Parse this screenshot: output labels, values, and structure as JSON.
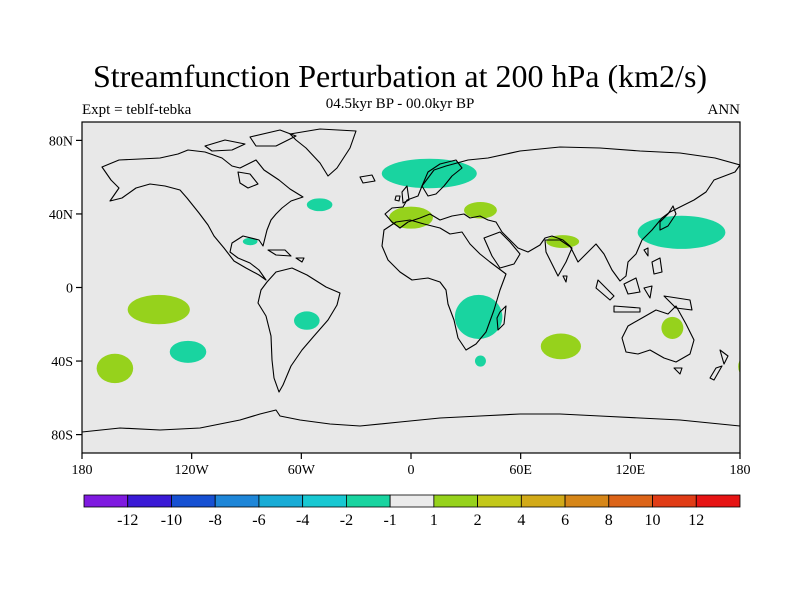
{
  "header": {
    "title": "Streamfunction Perturbation at 200 hPa (km2/s)",
    "subtitle": "04.5kyr BP - 00.0kyr BP",
    "left_label": "Expt = teblf-tebka",
    "right_label": "ANN"
  },
  "map": {
    "background_color": "#e8e8e8",
    "lon_range": [
      -180,
      180
    ],
    "lat_range": [
      -90,
      90
    ],
    "lat_ticks": [
      {
        "value": 80,
        "label": "80N"
      },
      {
        "value": 40,
        "label": "40N"
      },
      {
        "value": 0,
        "label": "0"
      },
      {
        "value": -40,
        "label": "40S"
      },
      {
        "value": -80,
        "label": "80S"
      }
    ],
    "lon_ticks": [
      {
        "value": -180,
        "label": "180"
      },
      {
        "value": -120,
        "label": "120W"
      },
      {
        "value": -60,
        "label": "60W"
      },
      {
        "value": 0,
        "label": "0"
      },
      {
        "value": 60,
        "label": "60E"
      },
      {
        "value": 120,
        "label": "120E"
      },
      {
        "value": 180,
        "label": "180"
      }
    ]
  },
  "chart_data": {
    "type": "heatmap",
    "title": "Streamfunction Perturbation at 200 hPa (km2/s)",
    "subtitle": "04.5kyr BP - 00.0kyr BP",
    "units": "km2/s",
    "colorbar": {
      "colors": [
        "#7f1ae0",
        "#3a1ad6",
        "#1650d2",
        "#1e86d8",
        "#19acd6",
        "#18c8d2",
        "#19d4a0",
        "#ebebeb",
        "#96d21c",
        "#c3c81a",
        "#d2aa18",
        "#d68618",
        "#dc6418",
        "#e03c16",
        "#e61414"
      ],
      "labels": [
        "-12",
        "-10",
        "-8",
        "-6",
        "-4",
        "-2",
        "-1",
        "1",
        "2",
        "4",
        "6",
        "8",
        "10",
        "12"
      ]
    },
    "anomalies": [
      {
        "name": "north-atlantic-europe",
        "lon": 10,
        "lat": 62,
        "rx": 26,
        "ry": 8,
        "value": -1.5
      },
      {
        "name": "west-atlantic",
        "lon": -50,
        "lat": 45,
        "rx": 7,
        "ry": 3.5,
        "value": -1.5
      },
      {
        "name": "gulf-of-mexico",
        "lon": -88,
        "lat": 25,
        "rx": 4,
        "ry": 2,
        "value": -1.5
      },
      {
        "name": "mediterranean-west",
        "lon": 0,
        "lat": 38,
        "rx": 12,
        "ry": 6,
        "value": 1.5
      },
      {
        "name": "mediterranean-east",
        "lon": 38,
        "lat": 42,
        "rx": 9,
        "ry": 4.5,
        "value": 1.5
      },
      {
        "name": "south-asia",
        "lon": 83,
        "lat": 25,
        "rx": 9,
        "ry": 3.5,
        "value": 1.5
      },
      {
        "name": "north-pacific",
        "lon": 148,
        "lat": 30,
        "rx": 24,
        "ry": 9,
        "value": -1.5
      },
      {
        "name": "tropical-pacific",
        "lon": -138,
        "lat": -12,
        "rx": 17,
        "ry": 8,
        "value": 1.5
      },
      {
        "name": "south-pacific",
        "lon": -122,
        "lat": -35,
        "rx": 10,
        "ry": 6,
        "value": -1.5
      },
      {
        "name": "southeast-pacific",
        "lon": -162,
        "lat": -44,
        "rx": 10,
        "ry": 8,
        "value": 1.5
      },
      {
        "name": "south-america",
        "lon": -57,
        "lat": -18,
        "rx": 7,
        "ry": 5,
        "value": -1.5
      },
      {
        "name": "southern-africa",
        "lon": 37,
        "lat": -16,
        "rx": 13,
        "ry": 12,
        "value": -1.5
      },
      {
        "name": "madagascar-south",
        "lon": 38,
        "lat": -40,
        "rx": 3,
        "ry": 3,
        "value": -1.5
      },
      {
        "name": "south-indian-ocean",
        "lon": 82,
        "lat": -32,
        "rx": 11,
        "ry": 7,
        "value": 1.5
      },
      {
        "name": "australia",
        "lon": 143,
        "lat": -22,
        "rx": 6,
        "ry": 6,
        "value": 1.5
      },
      {
        "name": "east-of-australia",
        "lon": 181,
        "lat": -43,
        "rx": 2,
        "ry": 4,
        "value": 1.5
      }
    ]
  }
}
